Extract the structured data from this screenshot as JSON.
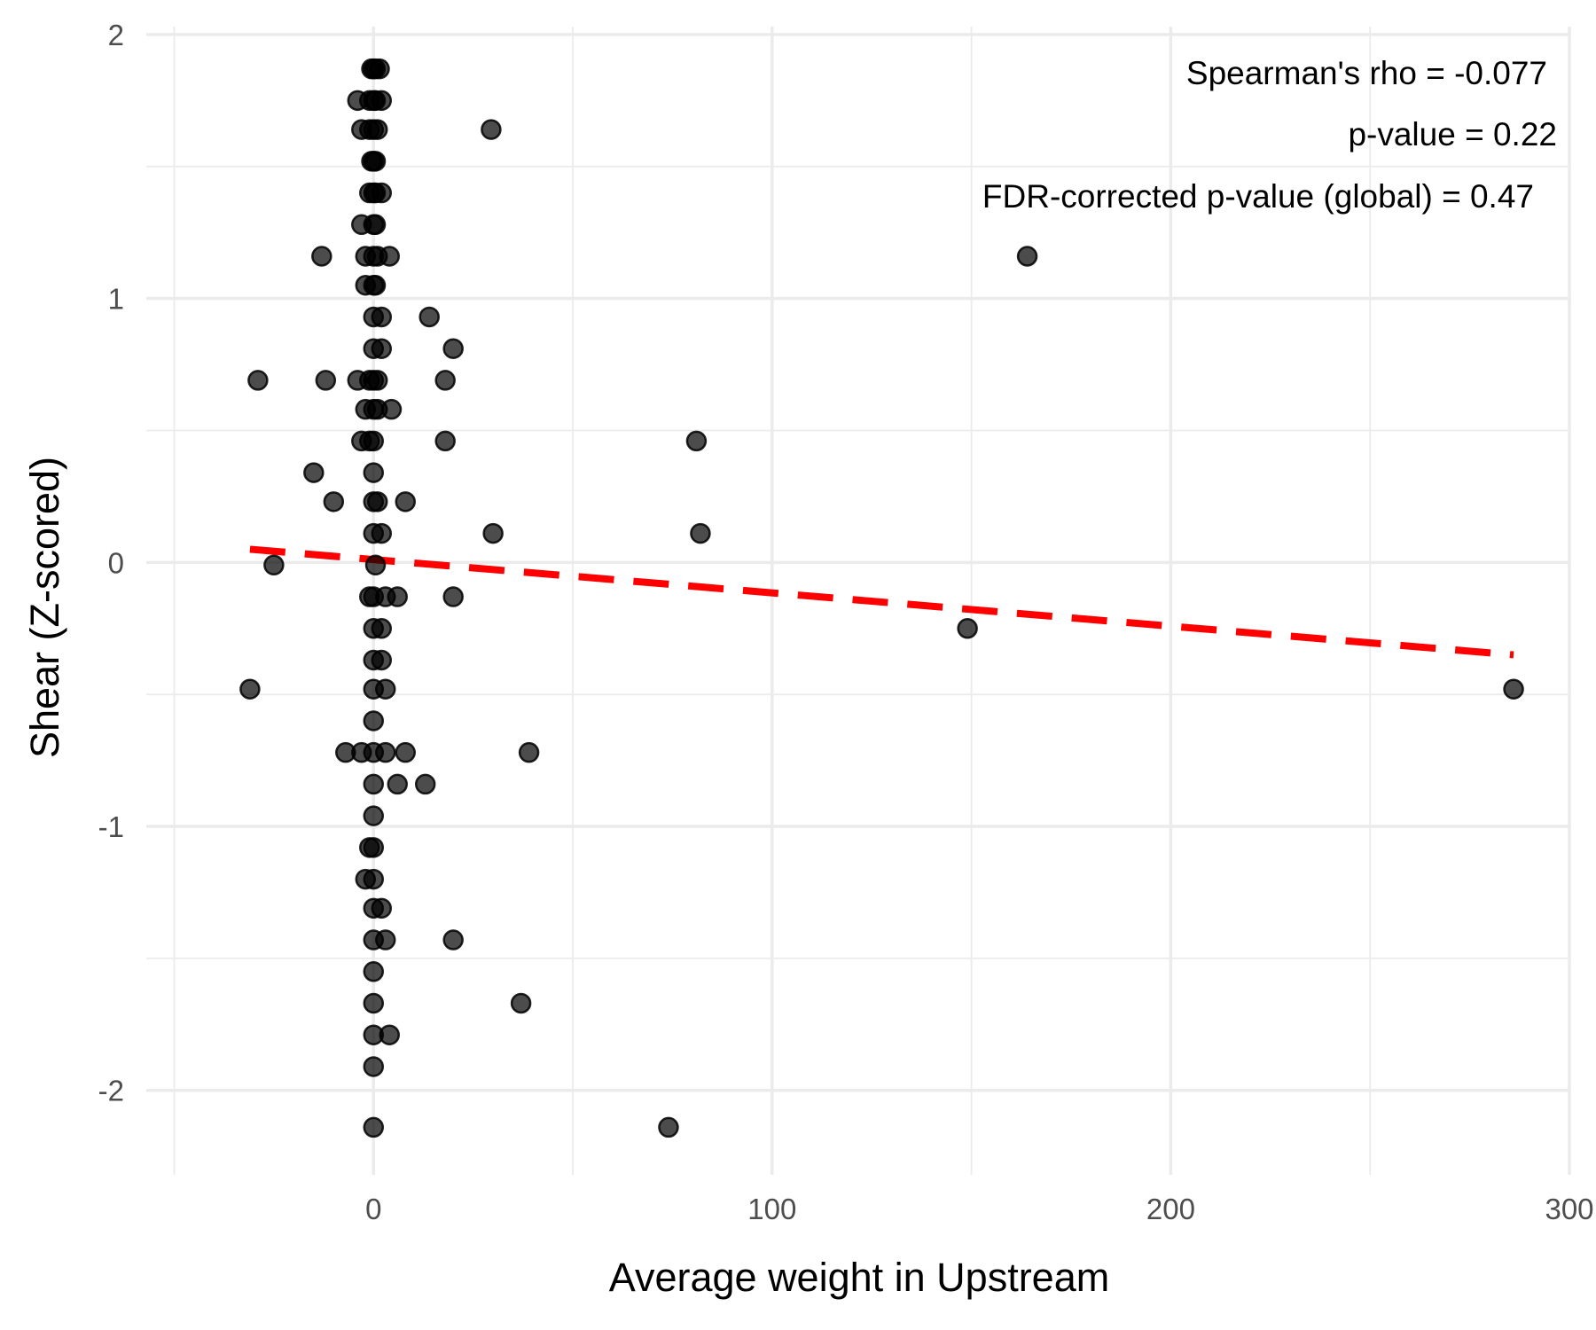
{
  "chart_data": {
    "type": "scatter",
    "xlabel": "Average weight in Upstream",
    "ylabel": "Shear (Z-scored)",
    "xlim": [
      -57,
      300
    ],
    "ylim": [
      -2.32,
      2.03
    ],
    "x_ticks": [
      0,
      100,
      200,
      300
    ],
    "y_ticks": [
      -2,
      -1,
      0,
      1,
      2
    ],
    "x_tick_labels": [
      "0",
      "100",
      "200",
      "300"
    ],
    "y_tick_labels": [
      "-2",
      "-1",
      "0",
      "1",
      "2"
    ],
    "grid": true,
    "point_color": "#000000",
    "point_opacity": 0.7,
    "annotations": [
      "Spearman's rho = -0.077",
      "p-value = 0.22",
      "FDR-corrected p-value (global) = 0.47"
    ],
    "trend_line": {
      "color": "#ff0000",
      "style": "dashed",
      "x": [
        -31,
        286
      ],
      "y": [
        0.05,
        -0.35
      ]
    },
    "points": [
      {
        "x": -0.5,
        "y": 1.87
      },
      {
        "x": 0,
        "y": 1.87
      },
      {
        "x": 0.5,
        "y": 1.87
      },
      {
        "x": 1.5,
        "y": 1.87
      },
      {
        "x": -4,
        "y": 1.75
      },
      {
        "x": -1,
        "y": 1.75
      },
      {
        "x": 0,
        "y": 1.75
      },
      {
        "x": 0.5,
        "y": 1.75
      },
      {
        "x": 2,
        "y": 1.75
      },
      {
        "x": 29.5,
        "y": 1.64
      },
      {
        "x": -3,
        "y": 1.64
      },
      {
        "x": -1,
        "y": 1.64
      },
      {
        "x": 0,
        "y": 1.64
      },
      {
        "x": 1,
        "y": 1.64
      },
      {
        "x": -0.5,
        "y": 1.52
      },
      {
        "x": 0,
        "y": 1.52
      },
      {
        "x": 0.5,
        "y": 1.52
      },
      {
        "x": -1,
        "y": 1.4
      },
      {
        "x": 0,
        "y": 1.4
      },
      {
        "x": 0.5,
        "y": 1.4
      },
      {
        "x": 2,
        "y": 1.4
      },
      {
        "x": -3,
        "y": 1.28
      },
      {
        "x": 0,
        "y": 1.28
      },
      {
        "x": 0.5,
        "y": 1.28
      },
      {
        "x": -13,
        "y": 1.16
      },
      {
        "x": -2,
        "y": 1.16
      },
      {
        "x": 0,
        "y": 1.16
      },
      {
        "x": 1,
        "y": 1.16
      },
      {
        "x": 4,
        "y": 1.16
      },
      {
        "x": 164,
        "y": 1.16
      },
      {
        "x": -2,
        "y": 1.05
      },
      {
        "x": 0,
        "y": 1.05
      },
      {
        "x": 0.5,
        "y": 1.05
      },
      {
        "x": 14,
        "y": 0.93
      },
      {
        "x": 0,
        "y": 0.93
      },
      {
        "x": 2,
        "y": 0.93
      },
      {
        "x": 20,
        "y": 0.81
      },
      {
        "x": 0,
        "y": 0.81
      },
      {
        "x": 2,
        "y": 0.81
      },
      {
        "x": -29,
        "y": 0.69
      },
      {
        "x": -12,
        "y": 0.69
      },
      {
        "x": -4,
        "y": 0.69
      },
      {
        "x": -1,
        "y": 0.69
      },
      {
        "x": 0,
        "y": 0.69
      },
      {
        "x": 1,
        "y": 0.69
      },
      {
        "x": 18,
        "y": 0.69
      },
      {
        "x": -2,
        "y": 0.58
      },
      {
        "x": 0,
        "y": 0.58
      },
      {
        "x": 1,
        "y": 0.58
      },
      {
        "x": 4.5,
        "y": 0.58
      },
      {
        "x": -3,
        "y": 0.46
      },
      {
        "x": -1,
        "y": 0.46
      },
      {
        "x": 0,
        "y": 0.46
      },
      {
        "x": 18,
        "y": 0.46
      },
      {
        "x": 81,
        "y": 0.46
      },
      {
        "x": -15,
        "y": 0.34
      },
      {
        "x": 0,
        "y": 0.34
      },
      {
        "x": -10,
        "y": 0.23
      },
      {
        "x": 0,
        "y": 0.23
      },
      {
        "x": 1,
        "y": 0.23
      },
      {
        "x": 8,
        "y": 0.23
      },
      {
        "x": 0,
        "y": 0.11
      },
      {
        "x": 2,
        "y": 0.11
      },
      {
        "x": 30,
        "y": 0.11
      },
      {
        "x": 82,
        "y": 0.11
      },
      {
        "x": -25,
        "y": -0.01
      },
      {
        "x": 0.5,
        "y": -0.01
      },
      {
        "x": -1,
        "y": -0.13
      },
      {
        "x": 0,
        "y": -0.13
      },
      {
        "x": 3,
        "y": -0.13
      },
      {
        "x": 6,
        "y": -0.13
      },
      {
        "x": 20,
        "y": -0.13
      },
      {
        "x": 0,
        "y": -0.25
      },
      {
        "x": 2,
        "y": -0.25
      },
      {
        "x": 149,
        "y": -0.25
      },
      {
        "x": 0,
        "y": -0.37
      },
      {
        "x": 2,
        "y": -0.37
      },
      {
        "x": -31,
        "y": -0.48
      },
      {
        "x": 0,
        "y": -0.48
      },
      {
        "x": 3,
        "y": -0.48
      },
      {
        "x": 286,
        "y": -0.48
      },
      {
        "x": 0,
        "y": -0.6
      },
      {
        "x": -7,
        "y": -0.72
      },
      {
        "x": -3,
        "y": -0.72
      },
      {
        "x": 0,
        "y": -0.72
      },
      {
        "x": 3,
        "y": -0.72
      },
      {
        "x": 8,
        "y": -0.72
      },
      {
        "x": 39,
        "y": -0.72
      },
      {
        "x": 0,
        "y": -0.84
      },
      {
        "x": 6,
        "y": -0.84
      },
      {
        "x": 13,
        "y": -0.84
      },
      {
        "x": 0,
        "y": -0.96
      },
      {
        "x": -1,
        "y": -1.08
      },
      {
        "x": 0,
        "y": -1.08
      },
      {
        "x": -2,
        "y": -1.2
      },
      {
        "x": 0,
        "y": -1.2
      },
      {
        "x": 0,
        "y": -1.31
      },
      {
        "x": 2,
        "y": -1.31
      },
      {
        "x": 0,
        "y": -1.43
      },
      {
        "x": 3,
        "y": -1.43
      },
      {
        "x": 20,
        "y": -1.43
      },
      {
        "x": 0,
        "y": -1.55
      },
      {
        "x": 0,
        "y": -1.67
      },
      {
        "x": 37,
        "y": -1.67
      },
      {
        "x": 0,
        "y": -1.79
      },
      {
        "x": 4,
        "y": -1.79
      },
      {
        "x": 0,
        "y": -1.91
      },
      {
        "x": 0,
        "y": -2.14
      },
      {
        "x": 74,
        "y": -2.14
      }
    ]
  }
}
